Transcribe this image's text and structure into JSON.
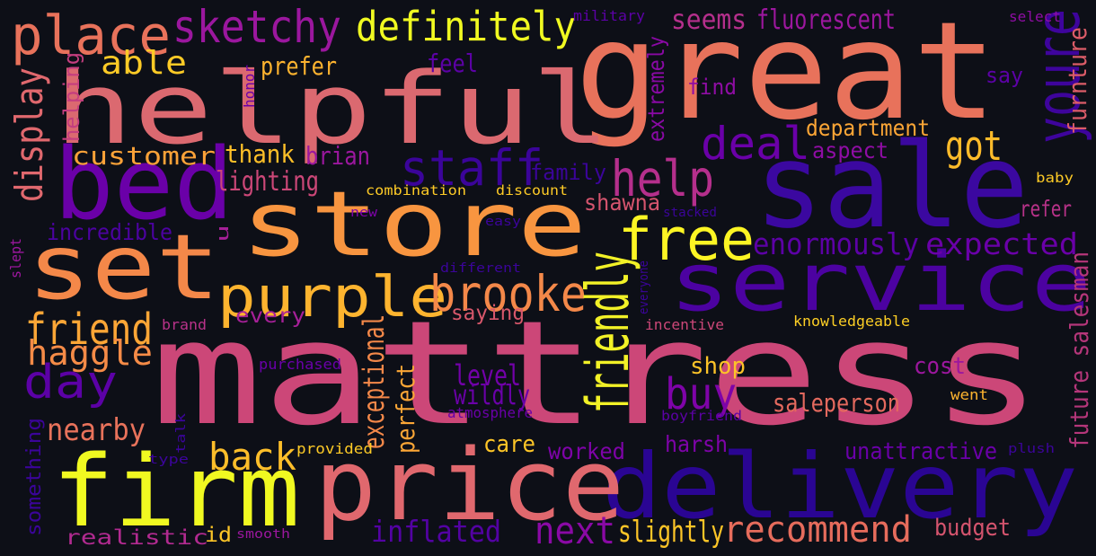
{
  "palette": {
    "background": "#0d0f17"
  },
  "words": [
    {
      "text": "mattress",
      "color": "#cc4778"
    },
    {
      "text": "great",
      "color": "#e8725b"
    },
    {
      "text": "helpful",
      "color": "#db6970"
    },
    {
      "text": "sale",
      "color": "#3b08a0"
    },
    {
      "text": "store",
      "color": "#f89540"
    },
    {
      "text": "set",
      "color": "#f48849"
    },
    {
      "text": "bed",
      "color": "#6a00a8"
    },
    {
      "text": "service",
      "color": "#4c02a1"
    },
    {
      "text": "delivery",
      "color": "#2a0593"
    },
    {
      "text": "firm",
      "color": "#f0f921"
    },
    {
      "text": "price",
      "color": "#e0686e"
    },
    {
      "text": "purple",
      "color": "#fdb42f"
    },
    {
      "text": "brooke",
      "color": "#f48849"
    },
    {
      "text": "free",
      "color": "#fcf524"
    },
    {
      "text": "place",
      "color": "#e8725b"
    },
    {
      "text": "sketchy",
      "color": "#9b179e"
    },
    {
      "text": "definitely",
      "color": "#f0f921"
    },
    {
      "text": "youre",
      "color": "#3e049c"
    },
    {
      "text": "deal",
      "color": "#6a00a8"
    },
    {
      "text": "got",
      "color": "#febb2a"
    },
    {
      "text": "staff",
      "color": "#3b049a"
    },
    {
      "text": "help",
      "color": "#b52f8c"
    },
    {
      "text": "day",
      "color": "#5c01a6"
    },
    {
      "text": "friendly",
      "color": "#f2f127"
    },
    {
      "text": "friend",
      "color": "#fca636"
    },
    {
      "text": "buy",
      "color": "#7e03a8"
    },
    {
      "text": "back",
      "color": "#fdbe2a"
    },
    {
      "text": "next",
      "color": "#8a09a5"
    },
    {
      "text": "recommend",
      "color": "#e66c5c"
    },
    {
      "text": "display",
      "color": "#e0686e"
    },
    {
      "text": "able",
      "color": "#fdca26"
    },
    {
      "text": "haggle",
      "color": "#f58b47"
    },
    {
      "text": "nearby",
      "color": "#e8725b"
    },
    {
      "text": "enormously",
      "color": "#5c01a6"
    },
    {
      "text": "expected",
      "color": "#6a00a8"
    },
    {
      "text": "furnture",
      "color": "#db5c68"
    },
    {
      "text": "level",
      "color": "#7201a8"
    },
    {
      "text": "wildly",
      "color": "#6a00a8"
    },
    {
      "text": "inflated",
      "color": "#5302a3"
    },
    {
      "text": "slightly",
      "color": "#fdc527"
    },
    {
      "text": "future salesman",
      "color": "#b5367a"
    },
    {
      "text": "seems",
      "color": "#b52f8c"
    },
    {
      "text": "fluorescent",
      "color": "#9c179e"
    },
    {
      "text": "prefer",
      "color": "#fdb32f"
    },
    {
      "text": "feel",
      "color": "#5c01a6"
    },
    {
      "text": "helping",
      "color": "#c43e7f"
    },
    {
      "text": "customer",
      "color": "#fba238"
    },
    {
      "text": "thank",
      "color": "#fdbf28"
    },
    {
      "text": "brian",
      "color": "#9b179e"
    },
    {
      "text": "lighting",
      "color": "#cc4778"
    },
    {
      "text": "department",
      "color": "#fca636"
    },
    {
      "text": "aspect",
      "color": "#8f0da4"
    },
    {
      "text": "find",
      "color": "#8f0da4"
    },
    {
      "text": "say",
      "color": "#5c01a6"
    },
    {
      "text": "extremely",
      "color": "#8a09a5"
    },
    {
      "text": "family",
      "color": "#3b049a"
    },
    {
      "text": "shawna",
      "color": "#d5546e"
    },
    {
      "text": "refer",
      "color": "#b83289"
    },
    {
      "text": "incredible",
      "color": "#4c02a1"
    },
    {
      "text": "every",
      "color": "#a62098"
    },
    {
      "text": "saying",
      "color": "#d8576b"
    },
    {
      "text": "exceptional",
      "color": "#f48849"
    },
    {
      "text": "perfect",
      "color": "#fca636"
    },
    {
      "text": "shop",
      "color": "#fdc328"
    },
    {
      "text": "cost",
      "color": "#9c179e"
    },
    {
      "text": "saleperson",
      "color": "#e4695e"
    },
    {
      "text": "care",
      "color": "#fdc527"
    },
    {
      "text": "worked",
      "color": "#7e03a8"
    },
    {
      "text": "harsh",
      "color": "#7e03a8"
    },
    {
      "text": "unattractive",
      "color": "#6a00a8"
    },
    {
      "text": "budget",
      "color": "#d5546e"
    },
    {
      "text": "realistic",
      "color": "#b12a90"
    },
    {
      "text": "id",
      "color": "#fdc527"
    },
    {
      "text": "something",
      "color": "#3b049a"
    },
    {
      "text": "military",
      "color": "#5c01a6"
    },
    {
      "text": "honor",
      "color": "#6a00a8"
    },
    {
      "text": "select",
      "color": "#8f0da4"
    },
    {
      "text": "combination",
      "color": "#fdca26"
    },
    {
      "text": "discount",
      "color": "#fdca26"
    },
    {
      "text": "baby",
      "color": "#fdca26"
    },
    {
      "text": "new",
      "color": "#7e03a8"
    },
    {
      "text": "easy",
      "color": "#3b049a"
    },
    {
      "text": "stacked",
      "color": "#3b049a"
    },
    {
      "text": "u",
      "color": "#a62098"
    },
    {
      "text": "slept",
      "color": "#9c179e"
    },
    {
      "text": "different",
      "color": "#3b049a"
    },
    {
      "text": "everyone",
      "color": "#3b049a"
    },
    {
      "text": "brand",
      "color": "#b83289"
    },
    {
      "text": "incentive",
      "color": "#cc4778"
    },
    {
      "text": "knowledgeable",
      "color": "#fcce25"
    },
    {
      "text": "purchased",
      "color": "#6a00a8"
    },
    {
      "text": "atmosphere",
      "color": "#6a00a8"
    },
    {
      "text": "boyfriend",
      "color": "#5c01a6"
    },
    {
      "text": "went",
      "color": "#fdb42f"
    },
    {
      "text": "talk",
      "color": "#3b049a"
    },
    {
      "text": "type",
      "color": "#3b049a"
    },
    {
      "text": "provided",
      "color": "#fdca26"
    },
    {
      "text": "smooth",
      "color": "#9b179e"
    },
    {
      "text": "plush",
      "color": "#3b049a"
    }
  ]
}
